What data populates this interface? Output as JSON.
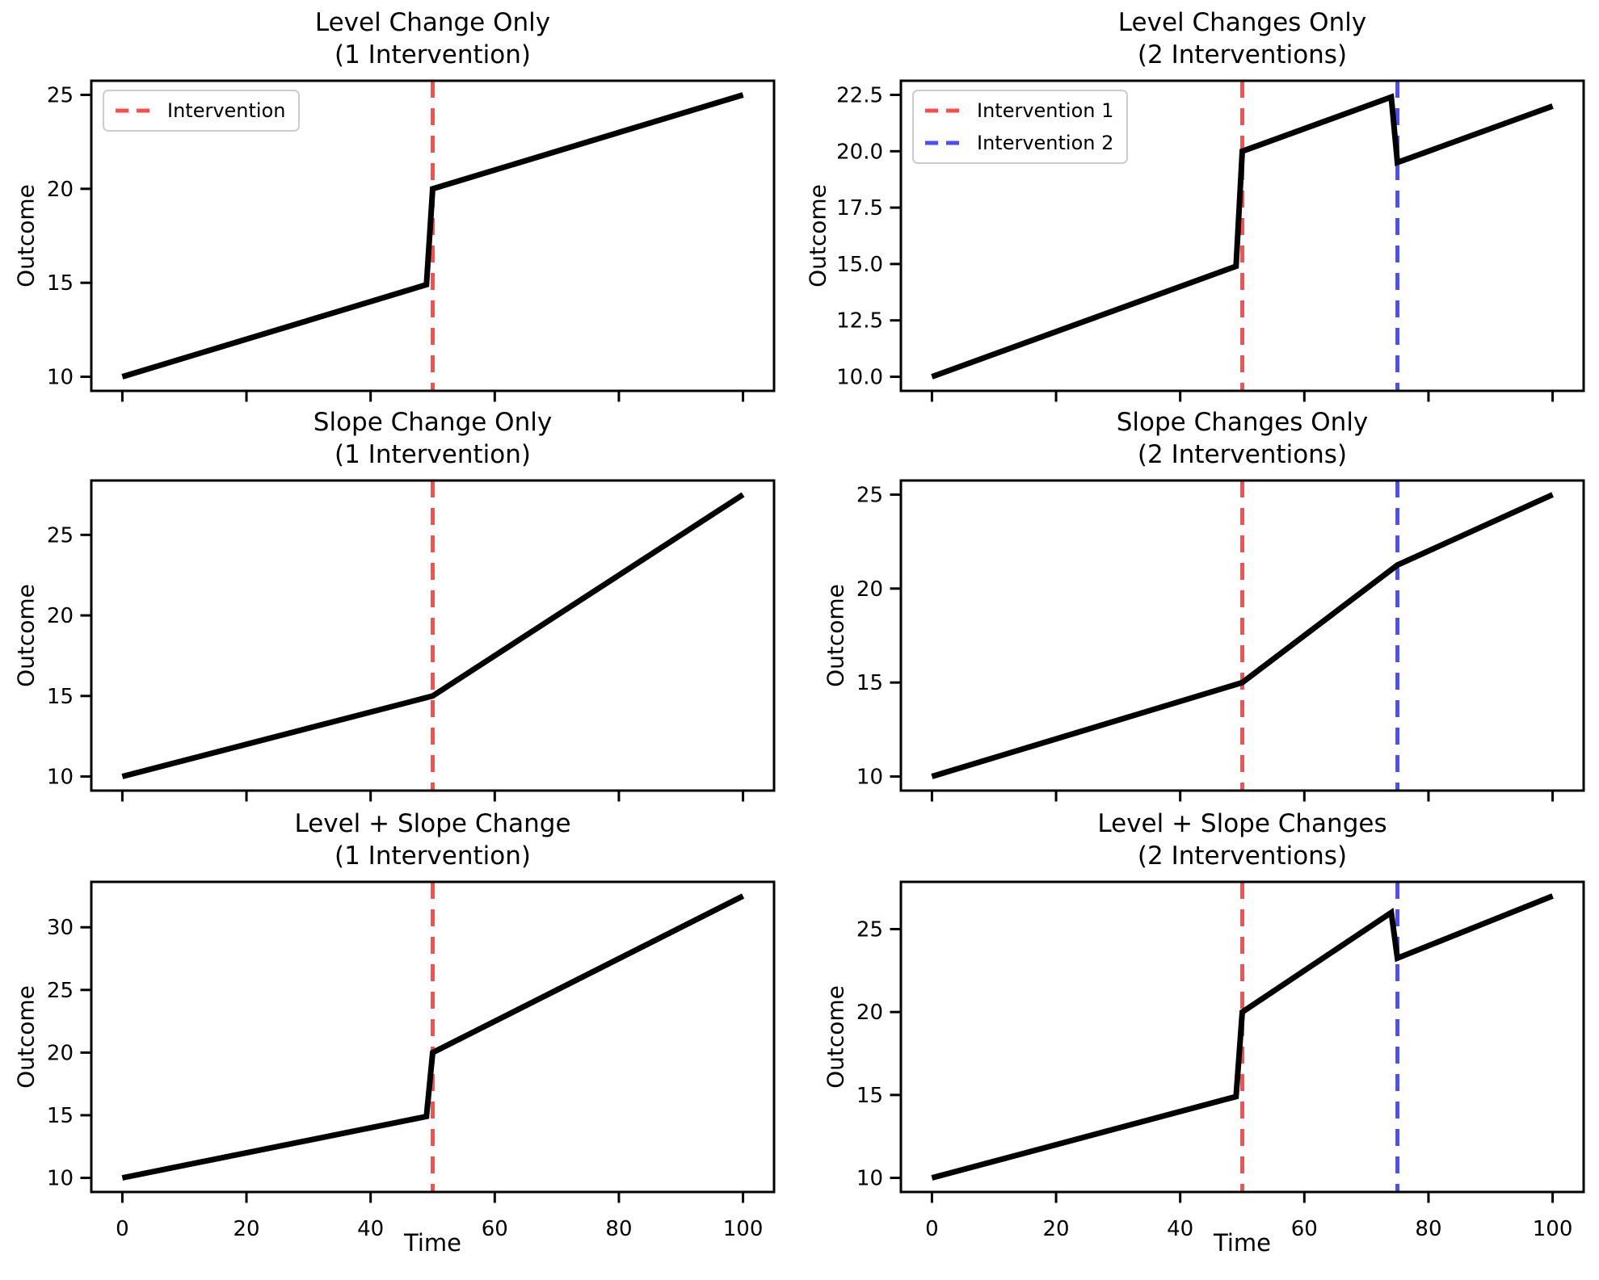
{
  "figure": {
    "background": "#ffffff",
    "accent_red": "#ff4d4d",
    "accent_blue": "#4d4dff",
    "series_color": "#000000"
  },
  "chart_data": [
    {
      "type": "line",
      "title": "Level Change Only\n(1 Intervention)",
      "ylabel": "Outcome",
      "xlim": [
        -5,
        105
      ],
      "ylim": [
        9.25,
        25.75
      ],
      "xticks": [
        0,
        20,
        40,
        60,
        80,
        100
      ],
      "yticks": [
        10,
        15,
        20,
        25
      ],
      "ytick_labels": [
        "10",
        "15",
        "20",
        "25"
      ],
      "grid": false,
      "series": [
        {
          "name": "outcome-line",
          "color": "#000000",
          "points": [
            [
              0,
              10
            ],
            [
              49,
              14.9
            ],
            [
              50,
              20
            ],
            [
              100,
              25
            ]
          ]
        }
      ],
      "vlines": [
        {
          "x": 50,
          "color": "#ff4d4d",
          "style": "dashed",
          "label": "Intervention"
        }
      ],
      "legend": {
        "position": "upper-left",
        "entries": [
          {
            "label": "Intervention",
            "color": "#ff4d4d"
          }
        ]
      }
    },
    {
      "type": "line",
      "title": "Level Changes Only\n(2 Interventions)",
      "ylabel": "Outcome",
      "xlim": [
        -5,
        105
      ],
      "ylim": [
        9.375,
        23.125
      ],
      "xticks": [
        0,
        20,
        40,
        60,
        80,
        100
      ],
      "yticks": [
        10,
        12.5,
        15,
        17.5,
        20,
        22.5
      ],
      "ytick_labels": [
        "10.0",
        "12.5",
        "15.0",
        "17.5",
        "20.0",
        "22.5"
      ],
      "grid": false,
      "series": [
        {
          "name": "outcome-line",
          "color": "#000000",
          "points": [
            [
              0,
              10
            ],
            [
              49,
              14.9
            ],
            [
              50,
              20
            ],
            [
              74,
              22.4
            ],
            [
              75,
              19.5
            ],
            [
              100,
              22
            ]
          ]
        }
      ],
      "vlines": [
        {
          "x": 50,
          "color": "#ff4d4d",
          "style": "dashed",
          "label": "Intervention 1"
        },
        {
          "x": 75,
          "color": "#4d4dff",
          "style": "dashed",
          "label": "Intervention 2"
        }
      ],
      "legend": {
        "position": "upper-left",
        "entries": [
          {
            "label": "Intervention 1",
            "color": "#ff4d4d"
          },
          {
            "label": "Intervention 2",
            "color": "#4d4dff"
          }
        ]
      }
    },
    {
      "type": "line",
      "title": "Slope Change Only\n(1 Intervention)",
      "ylabel": "Outcome",
      "xlim": [
        -5,
        105
      ],
      "ylim": [
        9.125,
        28.375
      ],
      "xticks": [
        0,
        20,
        40,
        60,
        80,
        100
      ],
      "yticks": [
        10,
        15,
        20,
        25
      ],
      "ytick_labels": [
        "10",
        "15",
        "20",
        "25"
      ],
      "grid": false,
      "series": [
        {
          "name": "outcome-line",
          "color": "#000000",
          "points": [
            [
              0,
              10
            ],
            [
              50,
              15
            ],
            [
              100,
              27.5
            ]
          ]
        }
      ],
      "vlines": [
        {
          "x": 50,
          "color": "#ff4d4d",
          "style": "dashed"
        }
      ]
    },
    {
      "type": "line",
      "title": "Slope Changes Only\n(2 Interventions)",
      "ylabel": "Outcome",
      "xlim": [
        -5,
        105
      ],
      "ylim": [
        9.25,
        25.75
      ],
      "xticks": [
        0,
        20,
        40,
        60,
        80,
        100
      ],
      "yticks": [
        10,
        15,
        20,
        25
      ],
      "ytick_labels": [
        "10",
        "15",
        "20",
        "25"
      ],
      "grid": false,
      "series": [
        {
          "name": "outcome-line",
          "color": "#000000",
          "points": [
            [
              0,
              10
            ],
            [
              50,
              15
            ],
            [
              75,
              21.25
            ],
            [
              100,
              25
            ]
          ]
        }
      ],
      "vlines": [
        {
          "x": 50,
          "color": "#ff4d4d",
          "style": "dashed"
        },
        {
          "x": 75,
          "color": "#4d4dff",
          "style": "dashed"
        }
      ]
    },
    {
      "type": "line",
      "title": "Level + Slope Change\n(1 Intervention)",
      "ylabel": "Outcome",
      "xlabel": "Time",
      "xlim": [
        -5,
        105
      ],
      "ylim": [
        8.875,
        33.625
      ],
      "xticks": [
        0,
        20,
        40,
        60,
        80,
        100
      ],
      "xtick_labels": [
        "0",
        "20",
        "40",
        "60",
        "80",
        "100"
      ],
      "yticks": [
        10,
        15,
        20,
        25,
        30
      ],
      "ytick_labels": [
        "10",
        "15",
        "20",
        "25",
        "30"
      ],
      "grid": false,
      "series": [
        {
          "name": "outcome-line",
          "color": "#000000",
          "points": [
            [
              0,
              10
            ],
            [
              49,
              14.9
            ],
            [
              50,
              20
            ],
            [
              100,
              32.5
            ]
          ]
        }
      ],
      "vlines": [
        {
          "x": 50,
          "color": "#ff4d4d",
          "style": "dashed"
        }
      ]
    },
    {
      "type": "line",
      "title": "Level + Slope Changes\n(2 Interventions)",
      "ylabel": "Outcome",
      "xlabel": "Time",
      "xlim": [
        -5,
        105
      ],
      "ylim": [
        9.15,
        27.85
      ],
      "xticks": [
        0,
        20,
        40,
        60,
        80,
        100
      ],
      "xtick_labels": [
        "0",
        "20",
        "40",
        "60",
        "80",
        "100"
      ],
      "yticks": [
        10,
        15,
        20,
        25
      ],
      "ytick_labels": [
        "10",
        "15",
        "20",
        "25"
      ],
      "grid": false,
      "series": [
        {
          "name": "outcome-line",
          "color": "#000000",
          "points": [
            [
              0,
              10
            ],
            [
              49,
              14.9
            ],
            [
              50,
              20
            ],
            [
              74,
              26
            ],
            [
              75,
              23.25
            ],
            [
              100,
              27
            ]
          ]
        }
      ],
      "vlines": [
        {
          "x": 50,
          "color": "#ff4d4d",
          "style": "dashed"
        },
        {
          "x": 75,
          "color": "#4d4dff",
          "style": "dashed"
        }
      ]
    }
  ]
}
